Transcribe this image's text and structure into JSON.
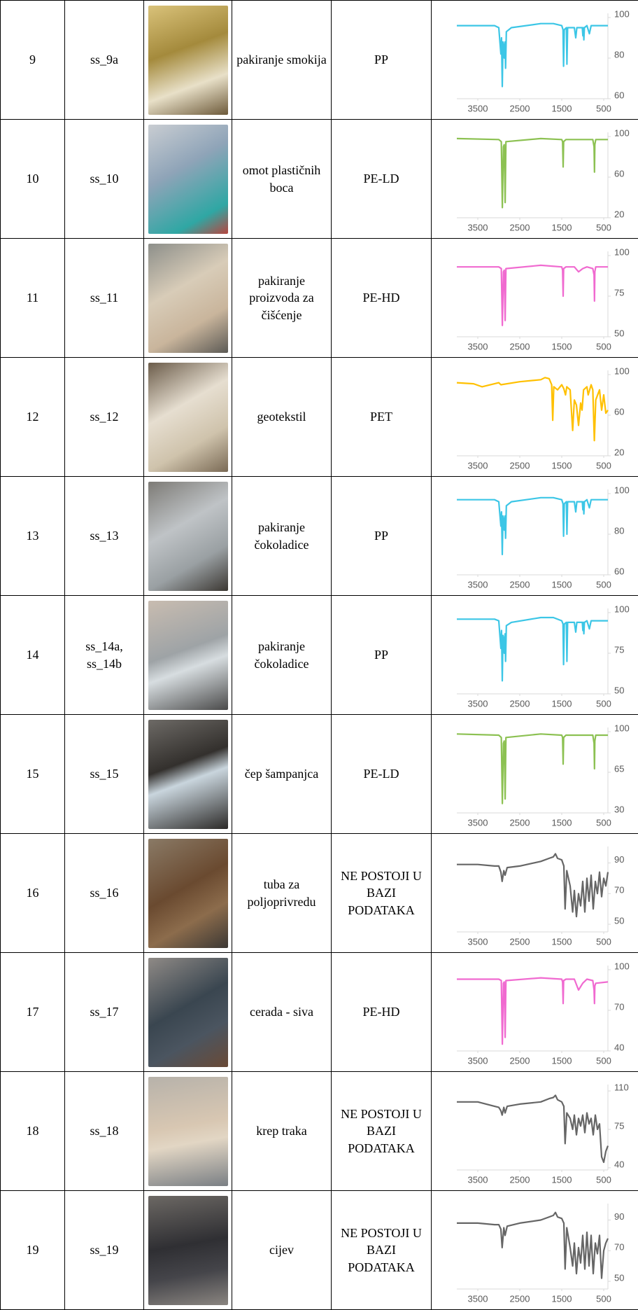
{
  "table": {
    "rows": [
      {
        "no": "9",
        "code": "ss_9a",
        "description": "pakiranje smokija",
        "polymer": "PP",
        "spectrum": {
          "type": "line",
          "color": "#3cc6e6",
          "xlim": [
            4000,
            400
          ],
          "ylim": [
            60,
            100
          ],
          "xticks": [
            3500,
            2500,
            1500,
            500
          ],
          "yticks": [
            60,
            80,
            100
          ],
          "x": [
            4000,
            3100,
            3000,
            2950,
            2935,
            2917,
            2900,
            2880,
            2868,
            2850,
            2838,
            2820,
            2700,
            2000,
            1700,
            1500,
            1470,
            1456,
            1440,
            1390,
            1376,
            1360,
            1200,
            1167,
            1140,
            1010,
            997,
            985,
            973,
            960,
            900,
            841,
            800,
            600,
            400
          ],
          "values": [
            96,
            96,
            95,
            82,
            90,
            66,
            88,
            86,
            80,
            88,
            75,
            93,
            95,
            97,
            97,
            96,
            94,
            76,
            94,
            95,
            77,
            95,
            95,
            90,
            95,
            95,
            91,
            95,
            89,
            95,
            96,
            92,
            96,
            96,
            96
          ]
        }
      },
      {
        "no": "10",
        "code": "ss_10",
        "description": "omot plastičnih boca",
        "polymer": "PE-LD",
        "spectrum": {
          "type": "line",
          "color": "#8cc152",
          "xlim": [
            4000,
            400
          ],
          "ylim": [
            20,
            100
          ],
          "xticks": [
            3500,
            2500,
            1500,
            500
          ],
          "yticks": [
            20,
            60,
            100
          ],
          "x": [
            4000,
            3000,
            2940,
            2915,
            2890,
            2870,
            2848,
            2830,
            2000,
            1500,
            1480,
            1467,
            1455,
            1400,
            760,
            730,
            720,
            712,
            690,
            400
          ],
          "values": [
            98,
            97,
            95,
            30,
            90,
            92,
            35,
            95,
            98,
            97,
            95,
            70,
            95,
            97,
            97,
            90,
            65,
            92,
            97,
            97
          ]
        }
      },
      {
        "no": "11",
        "code": "ss_11",
        "description": "pakiranje proizvoda za čišćenje",
        "polymer": "PE-HD",
        "spectrum": {
          "type": "line",
          "color": "#f06ad0",
          "xlim": [
            4000,
            400
          ],
          "ylim": [
            50,
            100
          ],
          "xticks": [
            3500,
            2500,
            1500,
            500
          ],
          "yticks": [
            50,
            75,
            100
          ],
          "x": [
            4000,
            3000,
            2940,
            2915,
            2890,
            2870,
            2848,
            2830,
            2000,
            1500,
            1480,
            1467,
            1455,
            1400,
            1200,
            1100,
            1000,
            900,
            760,
            730,
            720,
            712,
            690,
            400
          ],
          "values": [
            93,
            93,
            92,
            57,
            90,
            91,
            60,
            92,
            94,
            93,
            91,
            75,
            92,
            93,
            93,
            90,
            92,
            93,
            92,
            88,
            72,
            90,
            93,
            93
          ]
        }
      },
      {
        "no": "12",
        "code": "ss_12",
        "description": "geotekstil",
        "polymer": "PET",
        "spectrum": {
          "type": "line",
          "color": "#ffc000",
          "xlim": [
            4000,
            400
          ],
          "ylim": [
            20,
            100
          ],
          "xticks": [
            3500,
            2500,
            1500,
            500
          ],
          "yticks": [
            20,
            60,
            100
          ],
          "x": [
            4000,
            3600,
            3400,
            3000,
            2950,
            2500,
            2000,
            1900,
            1800,
            1740,
            1715,
            1690,
            1600,
            1500,
            1450,
            1410,
            1380,
            1300,
            1240,
            1200,
            1150,
            1100,
            1050,
            1017,
            980,
            900,
            870,
            800,
            760,
            723,
            690,
            600,
            550,
            500,
            450,
            400
          ],
          "values": [
            92,
            91,
            88,
            92,
            90,
            93,
            95,
            97,
            96,
            90,
            55,
            88,
            85,
            90,
            86,
            80,
            88,
            85,
            45,
            75,
            70,
            50,
            72,
            65,
            85,
            88,
            80,
            90,
            85,
            35,
            75,
            85,
            65,
            80,
            62,
            65
          ]
        }
      },
      {
        "no": "13",
        "code": "ss_13",
        "description": "pakiranje čokoladice",
        "polymer": "PP",
        "spectrum": {
          "type": "line",
          "color": "#3cc6e6",
          "xlim": [
            4000,
            400
          ],
          "ylim": [
            60,
            100
          ],
          "xticks": [
            3500,
            2500,
            1500,
            500
          ],
          "yticks": [
            60,
            80,
            100
          ],
          "x": [
            4000,
            3100,
            3000,
            2950,
            2935,
            2917,
            2900,
            2880,
            2868,
            2850,
            2838,
            2820,
            2700,
            2000,
            1700,
            1500,
            1470,
            1456,
            1440,
            1390,
            1376,
            1360,
            1200,
            1167,
            1140,
            1010,
            997,
            985,
            973,
            960,
            900,
            841,
            800,
            600,
            400
          ],
          "values": [
            97,
            97,
            96,
            84,
            91,
            70,
            89,
            87,
            82,
            89,
            78,
            94,
            96,
            98,
            98,
            97,
            95,
            79,
            95,
            96,
            80,
            96,
            96,
            91,
            96,
            96,
            92,
            96,
            90,
            96,
            97,
            93,
            97,
            97,
            97
          ]
        }
      },
      {
        "no": "14",
        "code": "ss_14a, ss_14b",
        "description": "pakiranje čokoladice",
        "polymer": "PP",
        "spectrum": {
          "type": "line",
          "color": "#3cc6e6",
          "xlim": [
            4000,
            400
          ],
          "ylim": [
            50,
            100
          ],
          "xticks": [
            3500,
            2500,
            1500,
            500
          ],
          "yticks": [
            50,
            75,
            100
          ],
          "x": [
            4000,
            3100,
            3000,
            2950,
            2935,
            2917,
            2900,
            2880,
            2868,
            2850,
            2838,
            2820,
            2700,
            2000,
            1700,
            1500,
            1470,
            1456,
            1440,
            1390,
            1376,
            1360,
            1200,
            1167,
            1140,
            1010,
            997,
            985,
            973,
            960,
            900,
            841,
            800,
            600,
            400
          ],
          "values": [
            96,
            96,
            95,
            78,
            89,
            58,
            86,
            84,
            75,
            87,
            70,
            92,
            94,
            97,
            97,
            95,
            93,
            68,
            93,
            94,
            70,
            94,
            94,
            88,
            94,
            94,
            89,
            94,
            87,
            94,
            95,
            90,
            95,
            95,
            95
          ]
        }
      },
      {
        "no": "15",
        "code": "ss_15",
        "description": "čep šampanjca",
        "polymer": "PE-LD",
        "spectrum": {
          "type": "line",
          "color": "#8cc152",
          "xlim": [
            4000,
            400
          ],
          "ylim": [
            30,
            100
          ],
          "xticks": [
            3500,
            2500,
            1500,
            500
          ],
          "yticks": [
            30,
            65,
            100
          ],
          "x": [
            4000,
            3000,
            2940,
            2915,
            2890,
            2870,
            2848,
            2830,
            2000,
            1500,
            1480,
            1467,
            1455,
            1400,
            760,
            730,
            720,
            712,
            690,
            400
          ],
          "values": [
            98,
            97,
            95,
            38,
            90,
            92,
            42,
            95,
            98,
            97,
            95,
            72,
            95,
            97,
            97,
            90,
            68,
            92,
            97,
            97
          ]
        }
      },
      {
        "no": "16",
        "code": "ss_16",
        "description": "tuba za poljoprivredu",
        "polymer": "NE POSTOJI U BAZI PODATAKA",
        "spectrum": {
          "type": "line",
          "color": "#666666",
          "xlim": [
            4000,
            400
          ],
          "ylim": [
            45,
            98
          ],
          "xticks": [
            3500,
            2500,
            1500,
            500
          ],
          "yticks": [
            50,
            70,
            90
          ],
          "x": [
            4000,
            3500,
            3100,
            3000,
            2950,
            2920,
            2880,
            2850,
            2800,
            2500,
            2000,
            1800,
            1700,
            1650,
            1600,
            1500,
            1450,
            1420,
            1380,
            1300,
            1240,
            1200,
            1150,
            1100,
            1050,
            1000,
            950,
            900,
            850,
            800,
            750,
            700,
            650,
            600,
            550,
            500,
            450,
            400
          ],
          "values": [
            89,
            89,
            88,
            88,
            84,
            78,
            85,
            82,
            87,
            88,
            91,
            93,
            94,
            96,
            93,
            92,
            88,
            60,
            85,
            75,
            58,
            72,
            55,
            70,
            62,
            78,
            58,
            80,
            65,
            82,
            60,
            78,
            70,
            84,
            68,
            80,
            75,
            84
          ]
        }
      },
      {
        "no": "17",
        "code": "ss_17",
        "description": "cerada - siva",
        "polymer": "PE-HD",
        "spectrum": {
          "type": "line",
          "color": "#f06ad0",
          "xlim": [
            4000,
            400
          ],
          "ylim": [
            40,
            100
          ],
          "xticks": [
            3500,
            2500,
            1500,
            500
          ],
          "yticks": [
            40,
            70,
            100
          ],
          "x": [
            4000,
            3000,
            2940,
            2915,
            2890,
            2870,
            2848,
            2830,
            2000,
            1500,
            1480,
            1467,
            1455,
            1400,
            1200,
            1100,
            1000,
            900,
            760,
            730,
            720,
            712,
            690,
            400
          ],
          "values": [
            93,
            93,
            92,
            45,
            90,
            91,
            50,
            92,
            94,
            93,
            91,
            75,
            92,
            93,
            93,
            85,
            90,
            93,
            92,
            85,
            75,
            88,
            90,
            91
          ]
        }
      },
      {
        "no": "18",
        "code": "ss_18",
        "description": "krep traka",
        "polymer": "NE POSTOJI U BAZI PODATAKA",
        "spectrum": {
          "type": "line",
          "color": "#666666",
          "xlim": [
            4000,
            400
          ],
          "ylim": [
            38,
            112
          ],
          "xticks": [
            3500,
            2500,
            1500,
            500
          ],
          "yticks": [
            40,
            75,
            110
          ],
          "x": [
            4000,
            3500,
            3100,
            3000,
            2950,
            2920,
            2880,
            2850,
            2800,
            2500,
            2000,
            1800,
            1700,
            1650,
            1600,
            1500,
            1450,
            1420,
            1380,
            1300,
            1240,
            1200,
            1150,
            1100,
            1050,
            1000,
            950,
            900,
            850,
            800,
            750,
            700,
            650,
            600,
            550,
            500,
            450,
            400
          ],
          "values": [
            100,
            100,
            96,
            95,
            92,
            88,
            95,
            90,
            96,
            98,
            100,
            103,
            104,
            106,
            102,
            100,
            96,
            62,
            90,
            85,
            75,
            88,
            70,
            85,
            78,
            88,
            72,
            90,
            80,
            85,
            70,
            88,
            75,
            80,
            50,
            45,
            55,
            60
          ]
        }
      },
      {
        "no": "19",
        "code": "ss_19",
        "description": "cijev",
        "polymer": "NE POSTOJI U BAZI PODATAKA",
        "spectrum": {
          "type": "line",
          "color": "#666666",
          "xlim": [
            4000,
            400
          ],
          "ylim": [
            45,
            98
          ],
          "xticks": [
            3500,
            2500,
            1500,
            500
          ],
          "yticks": [
            50,
            70,
            90
          ],
          "x": [
            4000,
            3500,
            3100,
            3000,
            2950,
            2920,
            2880,
            2850,
            2800,
            2500,
            2000,
            1800,
            1700,
            1650,
            1600,
            1500,
            1450,
            1420,
            1380,
            1300,
            1240,
            1200,
            1150,
            1100,
            1050,
            1000,
            950,
            900,
            850,
            800,
            750,
            700,
            650,
            600,
            550,
            500,
            450,
            400
          ],
          "values": [
            88,
            88,
            87,
            87,
            84,
            72,
            85,
            80,
            86,
            88,
            90,
            92,
            93,
            95,
            92,
            91,
            88,
            58,
            85,
            72,
            60,
            75,
            55,
            72,
            62,
            80,
            58,
            82,
            60,
            80,
            55,
            75,
            68,
            80,
            52,
            70,
            75,
            78
          ]
        }
      }
    ]
  }
}
